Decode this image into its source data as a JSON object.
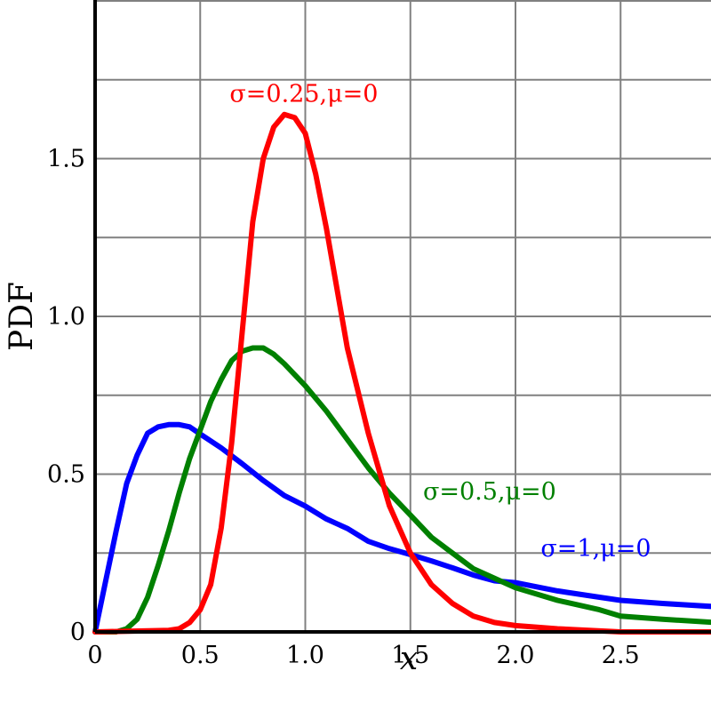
{
  "chart_data": {
    "type": "line",
    "xlabel": "x",
    "ylabel": "PDF",
    "xlim": [
      0,
      2.95
    ],
    "ylim": [
      0,
      2.0
    ],
    "x_ticks": [
      {
        "value": 0,
        "label": "0"
      },
      {
        "value": 0.5,
        "label": "0.5"
      },
      {
        "value": 1.0,
        "label": "1.0"
      },
      {
        "value": 1.5,
        "label": "1.5"
      },
      {
        "value": 2.0,
        "label": "2.0"
      },
      {
        "value": 2.5,
        "label": "2.5"
      }
    ],
    "y_ticks": [
      {
        "value": 0,
        "label": "0"
      },
      {
        "value": 0.5,
        "label": "0.5"
      },
      {
        "value": 1.0,
        "label": "1.0"
      },
      {
        "value": 1.5,
        "label": "1.5"
      }
    ],
    "grid": true,
    "grid_x_step": 0.5,
    "grid_y_step": 0.25,
    "series": [
      {
        "name": "σ=1,μ=0",
        "color": "#0000ff",
        "x": [
          0,
          0.05,
          0.1,
          0.15,
          0.2,
          0.25,
          0.3,
          0.35,
          0.4,
          0.45,
          0.5,
          0.6,
          0.7,
          0.8,
          0.9,
          1.0,
          1.1,
          1.2,
          1.3,
          1.4,
          1.5,
          1.6,
          1.7,
          1.8,
          1.9,
          2.0,
          2.2,
          2.4,
          2.5,
          2.7,
          2.95
        ],
        "y": [
          0,
          0.16,
          0.32,
          0.47,
          0.56,
          0.63,
          0.65,
          0.657,
          0.657,
          0.65,
          0.627,
          0.583,
          0.533,
          0.48,
          0.432,
          0.399,
          0.358,
          0.328,
          0.287,
          0.264,
          0.245,
          0.225,
          0.203,
          0.18,
          0.162,
          0.156,
          0.13,
          0.11,
          0.1,
          0.09,
          0.08
        ]
      },
      {
        "name": "σ=0.5,μ=0",
        "color": "#008000",
        "x": [
          0,
          0.1,
          0.15,
          0.2,
          0.25,
          0.3,
          0.35,
          0.4,
          0.45,
          0.5,
          0.55,
          0.6,
          0.65,
          0.7,
          0.75,
          0.8,
          0.85,
          0.9,
          1.0,
          1.1,
          1.2,
          1.3,
          1.4,
          1.5,
          1.6,
          1.7,
          1.8,
          1.9,
          2.0,
          2.2,
          2.4,
          2.5,
          2.7,
          2.95
        ],
        "y": [
          0,
          0,
          0.01,
          0.04,
          0.11,
          0.21,
          0.32,
          0.44,
          0.55,
          0.64,
          0.73,
          0.8,
          0.86,
          0.89,
          0.9,
          0.9,
          0.88,
          0.85,
          0.78,
          0.7,
          0.61,
          0.52,
          0.44,
          0.37,
          0.3,
          0.25,
          0.2,
          0.17,
          0.14,
          0.1,
          0.07,
          0.05,
          0.04,
          0.03
        ]
      },
      {
        "name": "σ=0.25,μ=0",
        "color": "#ff0000",
        "x": [
          0,
          0.35,
          0.4,
          0.45,
          0.5,
          0.55,
          0.6,
          0.65,
          0.7,
          0.75,
          0.8,
          0.85,
          0.9,
          0.95,
          1.0,
          1.05,
          1.1,
          1.2,
          1.3,
          1.4,
          1.5,
          1.6,
          1.7,
          1.8,
          1.9,
          2.0,
          2.2,
          2.5,
          2.95
        ],
        "y": [
          0,
          0.005,
          0.01,
          0.03,
          0.07,
          0.15,
          0.33,
          0.6,
          0.95,
          1.3,
          1.5,
          1.6,
          1.64,
          1.63,
          1.58,
          1.45,
          1.28,
          0.9,
          0.63,
          0.4,
          0.25,
          0.15,
          0.09,
          0.05,
          0.03,
          0.02,
          0.01,
          0,
          0
        ]
      }
    ],
    "annotations": [
      {
        "text": "σ=0.25,μ=0",
        "x": 0.64,
        "y": 1.68,
        "color": "#ff0000"
      },
      {
        "text": "σ=0.5,μ=0",
        "x": 1.56,
        "y": 0.42,
        "color": "#008000"
      },
      {
        "text": "σ=1,μ=0",
        "x": 2.12,
        "y": 0.24,
        "color": "#0000ff"
      }
    ]
  }
}
